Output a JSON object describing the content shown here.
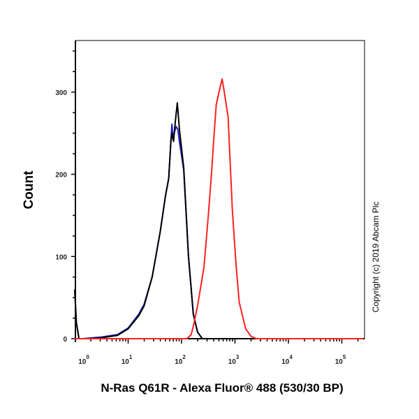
{
  "chart_data": {
    "type": "line",
    "title": "",
    "xlabel": "N-Ras Q61R - Alexa Fluor® 488 (530/30 BP)",
    "ylabel": "Count",
    "x_scale": "log",
    "xlim": [
      1,
      250000
    ],
    "ylim": [
      0,
      363
    ],
    "x_ticks": [
      {
        "base": "10",
        "exp": "0"
      },
      {
        "base": "10",
        "exp": "1"
      },
      {
        "base": "10",
        "exp": "2"
      },
      {
        "base": "10",
        "exp": "3"
      },
      {
        "base": "10",
        "exp": "4"
      },
      {
        "base": "10",
        "exp": "5"
      }
    ],
    "y_ticks": [
      "0",
      "100",
      "200",
      "300"
    ],
    "grid": false,
    "annotation": "Copyright (c) 2019 Abcam Plc",
    "series": [
      {
        "color": "#2020d0",
        "x_log10": [
          0,
          0.03,
          0.08,
          0.15,
          0.5,
          0.8,
          1.0,
          1.2,
          1.3,
          1.45,
          1.6,
          1.7,
          1.76,
          1.8,
          1.82,
          1.84,
          1.87,
          1.9,
          1.93,
          1.96,
          2.04,
          2.13,
          2.22,
          2.3,
          2.39,
          5.4
        ],
        "values": [
          60,
          20,
          0,
          0,
          2,
          5,
          13,
          30,
          42,
          75,
          130,
          174,
          195,
          240,
          261,
          245,
          252,
          258,
          255,
          240,
          205,
          100,
          30,
          8,
          0,
          0
        ]
      },
      {
        "color": "#000000",
        "x_log10": [
          0,
          0.03,
          0.08,
          0.15,
          0.5,
          0.8,
          1.0,
          1.2,
          1.3,
          1.45,
          1.6,
          1.7,
          1.76,
          1.8,
          1.82,
          1.85,
          1.88,
          1.92,
          1.96,
          2.04,
          2.13,
          2.22,
          2.3,
          2.39,
          5.4
        ],
        "values": [
          60,
          20,
          0,
          0,
          1,
          4,
          12,
          28,
          40,
          75,
          130,
          174,
          195,
          240,
          250,
          240,
          262,
          287,
          255,
          208,
          100,
          30,
          8,
          0,
          0
        ]
      },
      {
        "color": "#ff2020",
        "x_log10": [
          0,
          2.1,
          2.18,
          2.22,
          2.3,
          2.42,
          2.5,
          2.56,
          2.61,
          2.65,
          2.7,
          2.76,
          2.8,
          2.87,
          2.95,
          3.02,
          3.08,
          3.2,
          3.3,
          3.4,
          5.4
        ],
        "values": [
          0,
          0,
          5,
          15,
          40,
          87,
          150,
          200,
          250,
          285,
          300,
          316,
          300,
          270,
          157,
          90,
          44,
          12,
          3,
          0,
          0
        ]
      }
    ]
  }
}
